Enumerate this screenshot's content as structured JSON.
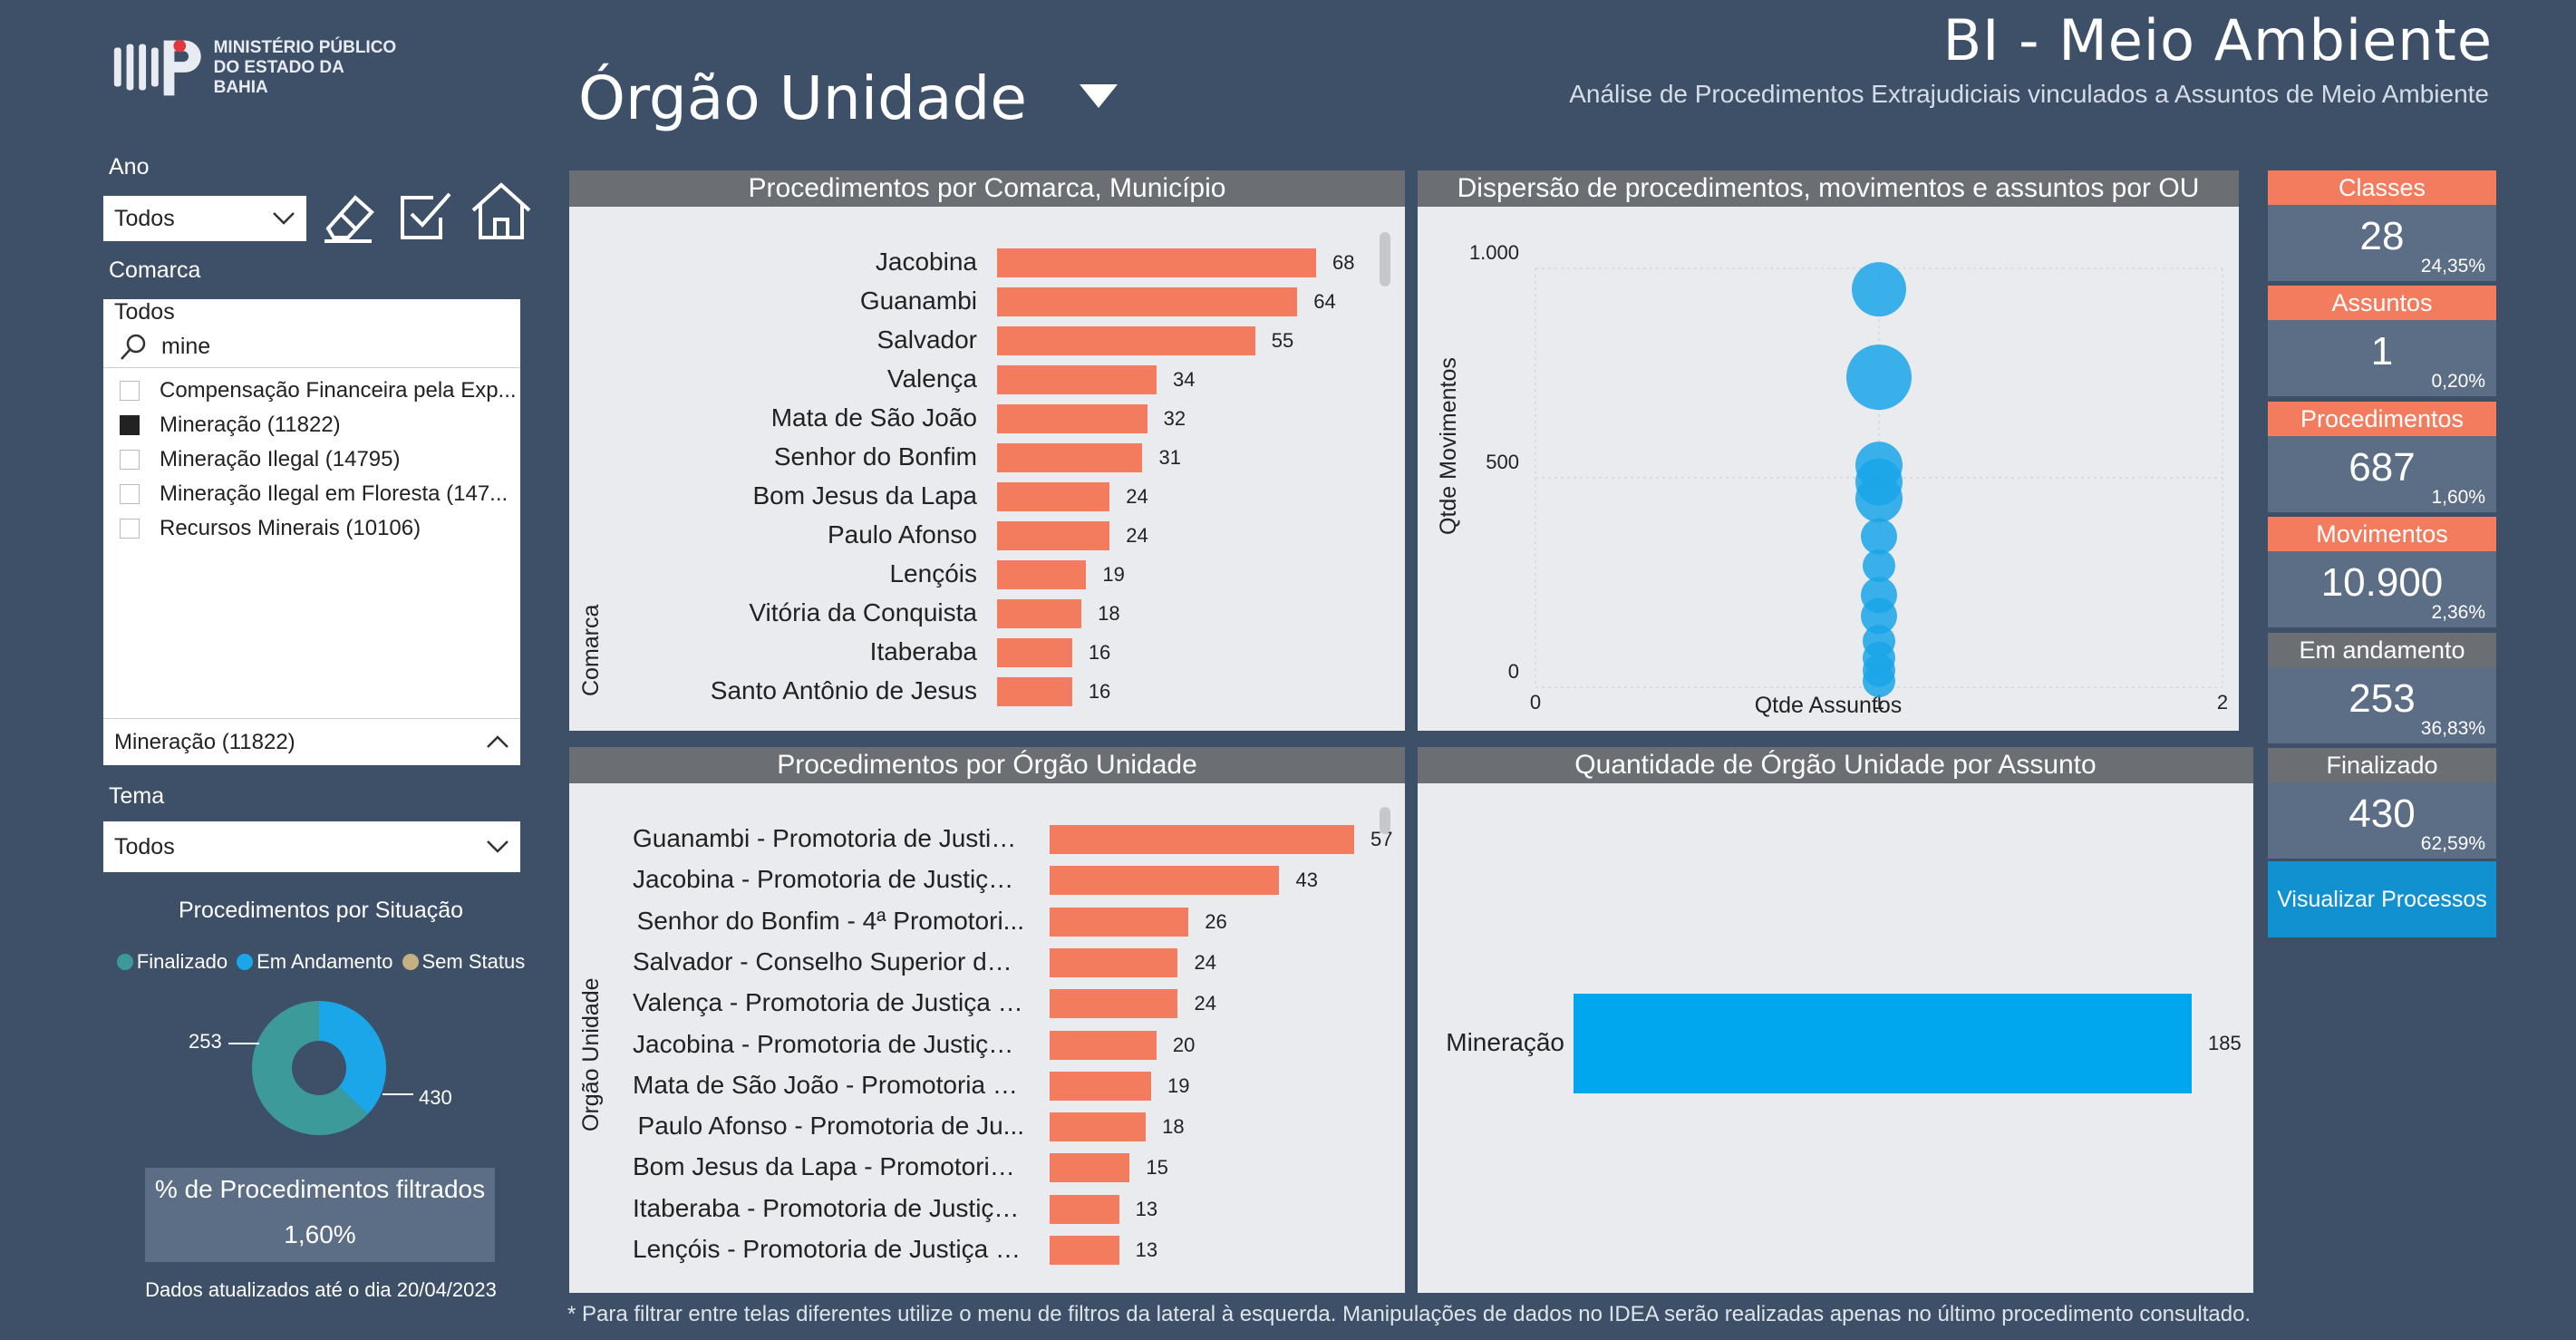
{
  "header": {
    "logo_text_line1": "MINISTÉRIO PÚBLICO",
    "logo_text_line2": "DO ESTADO DA BAHIA",
    "page_selector": "Órgão Unidade",
    "title": "BI - Meio Ambiente",
    "subtitle": "Análise de Procedimentos Extrajudiciais vinculados a Assuntos de Meio Ambiente"
  },
  "sidebar": {
    "ano_label": "Ano",
    "ano_value": "Todos",
    "comarca_label": "Comarca",
    "comarca_value_partial": "Todos",
    "search_text": "mine",
    "options": [
      {
        "label": "Compensação Financeira pela Exp...",
        "checked": false
      },
      {
        "label": "Mineração (11822)",
        "checked": true
      },
      {
        "label": "Mineração Ilegal (14795)",
        "checked": false
      },
      {
        "label": "Mineração Ilegal em Floresta (147...",
        "checked": false
      },
      {
        "label": "Recursos Minerais (10106)",
        "checked": false
      }
    ],
    "selected_value": "Mineração (11822)",
    "tema_label": "Tema",
    "tema_value": "Todos",
    "tools": [
      "eraser-icon",
      "checkbox-icon",
      "home-icon"
    ]
  },
  "situacao": {
    "title": "Procedimentos por Situação",
    "legend": [
      {
        "label": "Finalizado",
        "color": "#3d9a9a"
      },
      {
        "label": "Em Andamento",
        "color": "#1aa6e8"
      },
      {
        "label": "Sem Status",
        "color": "#c4b083"
      }
    ],
    "values": {
      "em_andamento": 253,
      "finalizado": 430
    },
    "label_253": "253",
    "label_430": "430"
  },
  "pct_card": {
    "title": "% de Procedimentos filtrados",
    "value": "1,60%"
  },
  "updated_note": "Dados atualizados até o dia 20/04/2023",
  "panels": {
    "comarca_title": "Procedimentos por Comarca, Município",
    "comarca_axis": "Comarca",
    "scatter_title": "Dispersão de procedimentos, movimentos e assuntos por OU",
    "scatter_ylabel": "Qtde Movimentos",
    "scatter_xlabel": "Qtde Assuntos",
    "scatter_yticks": [
      "1.000",
      "500",
      "0"
    ],
    "scatter_xticks": [
      "0",
      "1",
      "2"
    ],
    "orgao_title": "Procedimentos por Órgão Unidade",
    "orgao_axis": "Orgão Unidade",
    "assunto_title": "Quantidade de Órgão Unidade por Assunto"
  },
  "chart_data": [
    {
      "type": "bar",
      "title": "Procedimentos por Comarca, Município",
      "ylabel": "Comarca",
      "categories": [
        "Jacobina",
        "Guanambi",
        "Salvador",
        "Valença",
        "Mata de São João",
        "Senhor do Bonfim",
        "Bom Jesus da Lapa",
        "Paulo Afonso",
        "Lençóis",
        "Vitória da Conquista",
        "Itaberaba",
        "Santo Antônio de Jesus"
      ],
      "values": [
        68,
        64,
        55,
        34,
        32,
        31,
        24,
        24,
        19,
        18,
        16,
        16
      ],
      "color": "#f47c5e"
    },
    {
      "type": "scatter",
      "title": "Dispersão de procedimentos, movimentos e assuntos por OU",
      "xlabel": "Qtde Assuntos",
      "ylabel": "Qtde Movimentos",
      "xlim": [
        0,
        2
      ],
      "ylim": [
        0,
        1000
      ],
      "points": [
        {
          "x": 1,
          "y": 950,
          "size": 30
        },
        {
          "x": 1,
          "y": 740,
          "size": 36
        },
        {
          "x": 1,
          "y": 530,
          "size": 26
        },
        {
          "x": 1,
          "y": 490,
          "size": 26
        },
        {
          "x": 1,
          "y": 450,
          "size": 26
        },
        {
          "x": 1,
          "y": 360,
          "size": 20
        },
        {
          "x": 1,
          "y": 290,
          "size": 18
        },
        {
          "x": 1,
          "y": 220,
          "size": 20
        },
        {
          "x": 1,
          "y": 170,
          "size": 20
        },
        {
          "x": 1,
          "y": 110,
          "size": 18
        },
        {
          "x": 1,
          "y": 70,
          "size": 18
        },
        {
          "x": 1,
          "y": 40,
          "size": 18
        },
        {
          "x": 1,
          "y": 15,
          "size": 18
        }
      ],
      "color": "#1aa6e8"
    },
    {
      "type": "bar",
      "title": "Procedimentos por Órgão Unidade",
      "ylabel": "Orgão Unidade",
      "categories": [
        "Guanambi - Promotoria de Justiç...",
        "Jacobina - Promotoria de Justiça ...",
        "Senhor do Bonfim - 4ª Promotori...",
        "Salvador - Conselho Superior do ...",
        "Valença - Promotoria de Justiça E...",
        "Jacobina - Promotoria de Justiça ...",
        "Mata de São João - Promotoria d...",
        "Paulo Afonso - Promotoria de Ju...",
        "Bom Jesus da Lapa - Promotoria ...",
        "Itaberaba - Promotoria de Justiça...",
        "Lençóis - Promotoria de Justiça E..."
      ],
      "values": [
        57,
        43,
        26,
        24,
        24,
        20,
        19,
        18,
        15,
        13,
        13
      ],
      "color": "#f47c5e"
    },
    {
      "type": "bar",
      "title": "Quantidade de Órgão Unidade por Assunto",
      "categories": [
        "Mineração"
      ],
      "values": [
        185
      ],
      "color": "#00a6ee"
    }
  ],
  "kpis": [
    {
      "label": "Classes",
      "value": "28",
      "pct": "24,35%",
      "color": "#f47c5e"
    },
    {
      "label": "Assuntos",
      "value": "1",
      "pct": "0,20%",
      "color": "#f47c5e"
    },
    {
      "label": "Procedimentos",
      "value": "687",
      "pct": "1,60%",
      "color": "#f47c5e"
    },
    {
      "label": "Movimentos",
      "value": "10.900",
      "pct": "2,36%",
      "color": "#f47c5e"
    },
    {
      "label": "Em andamento",
      "value": "253",
      "pct": "36,83%",
      "color": "#6b6e72"
    },
    {
      "label": "Finalizado",
      "value": "430",
      "pct": "62,59%",
      "color": "#6b6e72"
    }
  ],
  "view_button": "Visualizar Processos",
  "footer_note": "* Para filtrar entre telas diferentes utilize o menu de filtros da lateral à esquerda.  Manipulações de dados no IDEA serão realizadas apenas no último procedimento consultado."
}
